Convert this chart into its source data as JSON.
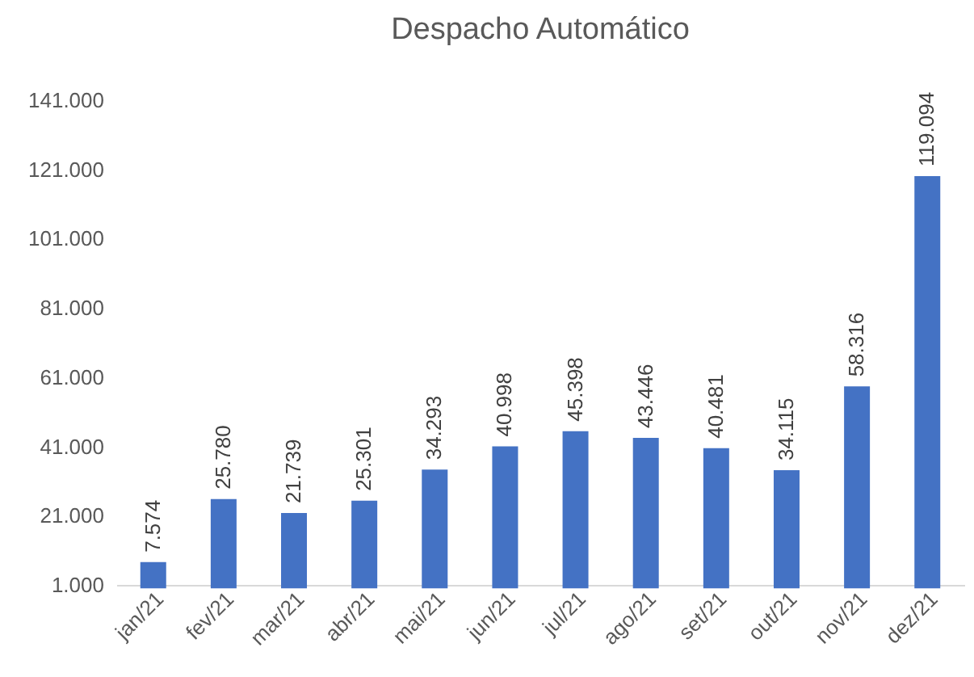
{
  "chart_data": {
    "type": "bar",
    "title": "Despacho Automático",
    "categories": [
      "jan/21",
      "fev/21",
      "mar/21",
      "abr/21",
      "mai/21",
      "jun/21",
      "jul/21",
      "ago/21",
      "set/21",
      "out/21",
      "nov/21",
      "dez/21"
    ],
    "values": [
      7574,
      25780,
      21739,
      25301,
      34293,
      40998,
      45398,
      43446,
      40481,
      34115,
      58316,
      119094
    ],
    "value_labels": [
      "7.574",
      "25.780",
      "21.739",
      "25.301",
      "34.293",
      "40.998",
      "45.398",
      "43.446",
      "40.481",
      "34.115",
      "58.316",
      "119.094"
    ],
    "color": "#4472c4",
    "ylim": [
      1000,
      141000
    ],
    "yticks": [
      {
        "value": 1000,
        "label": "1.000"
      },
      {
        "value": 21000,
        "label": "21.000"
      },
      {
        "value": 41000,
        "label": "41.000"
      },
      {
        "value": 61000,
        "label": "61.000"
      },
      {
        "value": 81000,
        "label": "81.000"
      },
      {
        "value": 101000,
        "label": "101.000"
      },
      {
        "value": 121000,
        "label": "121.000"
      },
      {
        "value": 141000,
        "label": "141.000"
      }
    ],
    "grid": false
  }
}
